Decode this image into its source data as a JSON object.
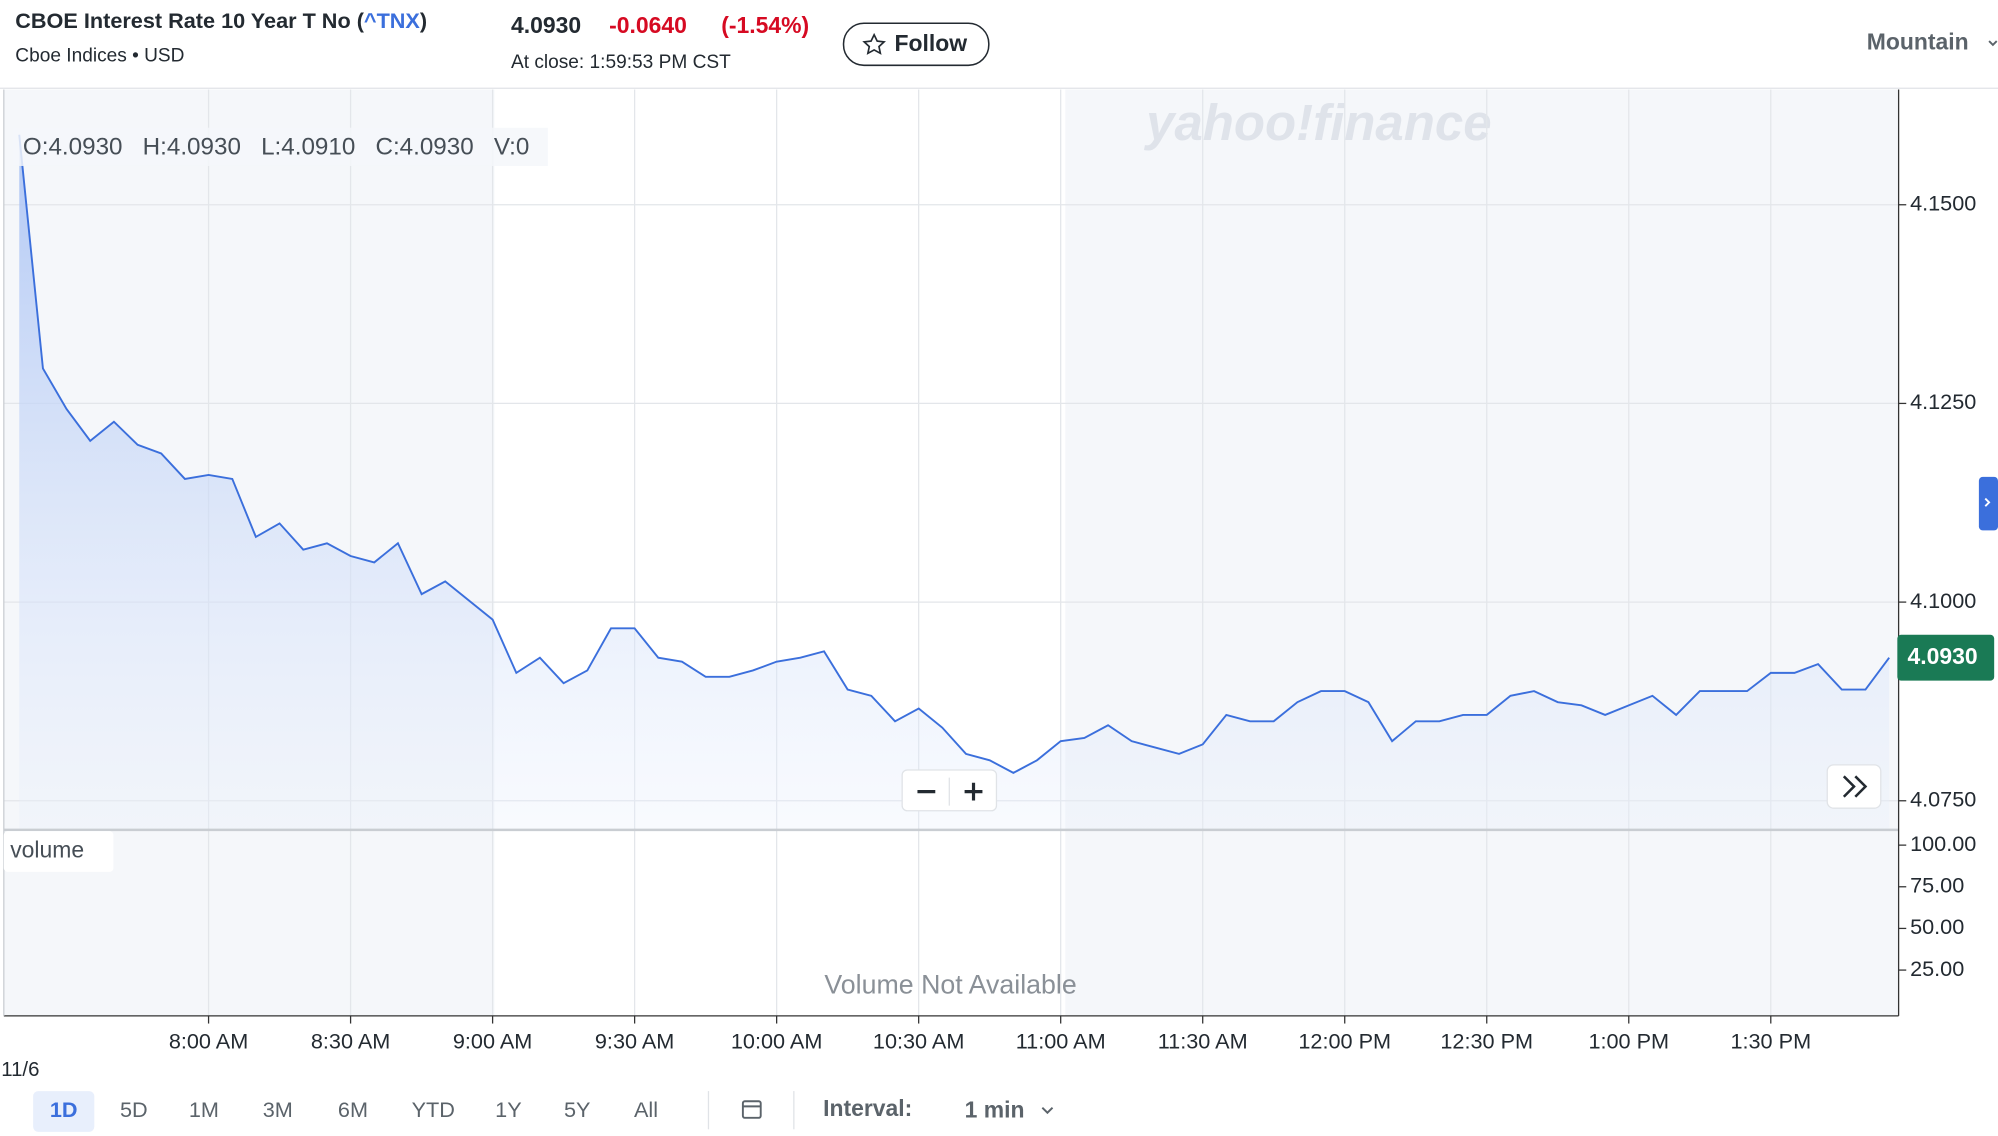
{
  "header": {
    "title_prefix": "CBOE Interest Rate 10 Year T No (",
    "symbol": "^TNX",
    "title_suffix": ")",
    "exchange": "Cboe Indices • USD",
    "price": "4.0930",
    "change": "-0.0640",
    "change_pct": "(-1.54%)",
    "close_time": "At close: 1:59:53 PM CST",
    "follow": "Follow",
    "timezone": "Mountain"
  },
  "chart_data": {
    "type": "line",
    "watermark": "yahoo!finance",
    "ohlc": "O:4.0930   H:4.0930   L:4.0910   C:4.0930   V:0",
    "color": "#3b6fdc",
    "values": [
      4.1588,
      4.1294,
      4.1243,
      4.1203,
      4.1227,
      4.1198,
      4.1187,
      4.1155,
      4.116,
      4.1155,
      4.1082,
      4.1099,
      4.1066,
      4.1074,
      4.1058,
      4.105,
      4.1074,
      4.101,
      4.1026,
      4.1002,
      4.0978,
      4.0911,
      4.093,
      4.0898,
      4.0914,
      4.0967,
      4.0967,
      4.093,
      4.0925,
      4.0906,
      4.0906,
      4.0914,
      4.0925,
      4.093,
      4.0938,
      4.089,
      4.0882,
      4.085,
      4.0866,
      4.0842,
      4.0809,
      4.0801,
      4.0785,
      4.0801,
      4.0825,
      4.0829,
      4.0845,
      4.0825,
      4.0817,
      4.0809,
      4.0821,
      4.0858,
      4.085,
      4.085,
      4.0874,
      4.0888,
      4.0888,
      4.0874,
      4.0825,
      4.085,
      4.085,
      4.0858,
      4.0858,
      4.0882,
      4.0888,
      4.0874,
      4.087,
      4.0858,
      4.087,
      4.0882,
      4.0858,
      4.0888,
      4.0888,
      4.0888,
      4.0911,
      4.0911,
      4.0922,
      4.089,
      4.089,
      4.093
    ],
    "xlim": [
      -0.65,
      79.4
    ],
    "xticks": [
      {
        "value": 8,
        "label": "8:00 AM"
      },
      {
        "value": 14,
        "label": "8:30 AM"
      },
      {
        "value": 20,
        "label": "9:00 AM"
      },
      {
        "value": 26,
        "label": "9:30 AM"
      },
      {
        "value": 32,
        "label": "10:00 AM"
      },
      {
        "value": 38,
        "label": "10:30 AM"
      },
      {
        "value": 44,
        "label": "11:00 AM"
      },
      {
        "value": 50,
        "label": "11:30 AM"
      },
      {
        "value": 56,
        "label": "12:00 PM"
      },
      {
        "value": 62,
        "label": "12:30 PM"
      },
      {
        "value": 68,
        "label": "1:00 PM"
      },
      {
        "value": 74,
        "label": "1:30 PM"
      }
    ],
    "ylim": [
      4.0715,
      4.1645
    ],
    "yticks": [
      {
        "value": 4.15,
        "label": "4.1500"
      },
      {
        "value": 4.125,
        "label": "4.1250"
      },
      {
        "value": 4.1,
        "label": "4.1000"
      },
      {
        "value": 4.075,
        "label": "4.0750"
      }
    ],
    "last_price": {
      "value": 4.093,
      "label": "4.0930"
    },
    "date_label": "11/6",
    "grid": true,
    "volume": {
      "label": "volume",
      "message": "Volume Not Available",
      "ylim": [
        -2.5,
        108.4
      ],
      "yticks": [
        {
          "value": 100,
          "label": "100.00"
        },
        {
          "value": 75,
          "label": "75.00"
        },
        {
          "value": 50,
          "label": "50.00"
        },
        {
          "value": 25,
          "label": "25.00"
        }
      ]
    }
  },
  "controls": {
    "ranges": [
      "1D",
      "5D",
      "1M",
      "3M",
      "6M",
      "YTD",
      "1Y",
      "5Y",
      "All"
    ],
    "interval_label": "Interval:",
    "interval": "1 min"
  }
}
